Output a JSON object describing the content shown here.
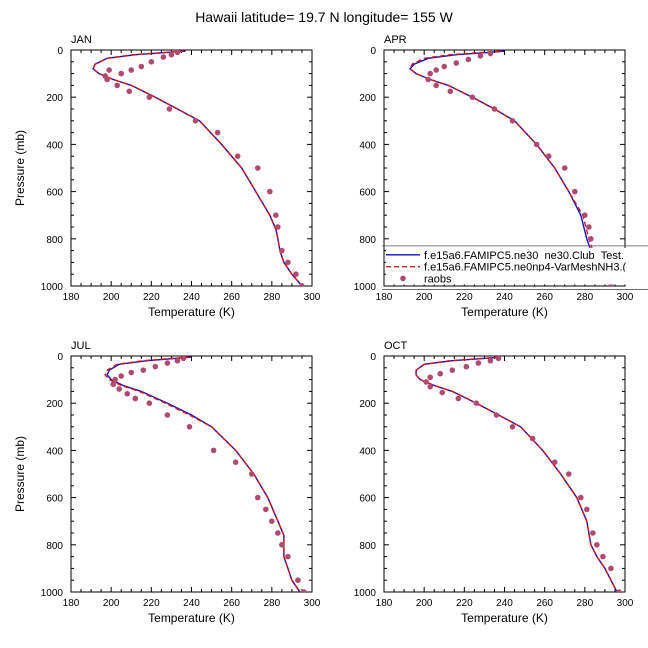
{
  "figure": {
    "title": "Hawaii  latitude= 19.7 N longitude= 155 W"
  },
  "colors": {
    "model1": "#1010c8",
    "model2": "#e01010",
    "obs": "#b04a6e"
  },
  "legend": {
    "panel": "APR",
    "placement": "lower-right",
    "entries": [
      {
        "label": "f.e15a6.FAMIPC5.ne30_ne30.Club_Test.",
        "style": "solid",
        "color_key": "model1"
      },
      {
        "label": "f.e15a6.FAMIPC5.ne0np4-VarMeshNH3.(",
        "style": "dashed",
        "color_key": "model2"
      },
      {
        "label": "raobs",
        "style": "marker",
        "color_key": "obs"
      }
    ]
  },
  "chart_data": [
    {
      "type": "line",
      "panel_label": "JAN",
      "xlabel": "Temperature (K)",
      "ylabel": "Pressure (mb)",
      "xlim": [
        180,
        300
      ],
      "ylim": [
        1000,
        0
      ],
      "xticks": [
        180,
        200,
        220,
        240,
        260,
        280,
        300
      ],
      "yticks": [
        0,
        200,
        400,
        600,
        800,
        1000
      ],
      "series": [
        {
          "name": "f.e15a6.FAMIPC5.ne30_ne30.Club_Test.",
          "style": "solid",
          "color_key": "model1",
          "x": [
            237,
            228,
            212,
            198,
            192,
            191,
            194,
            201,
            210,
            222,
            233,
            244,
            255,
            265,
            272,
            279,
            282,
            283,
            284,
            286,
            290,
            295
          ],
          "y": [
            5,
            10,
            20,
            35,
            60,
            80,
            100,
            125,
            150,
            200,
            250,
            300,
            400,
            500,
            600,
            700,
            760,
            800,
            850,
            900,
            950,
            1000
          ]
        },
        {
          "name": "f.e15a6.FAMIPC5.ne0np4-VarMeshNH3.(",
          "style": "dashed",
          "color_key": "model2",
          "x": [
            236,
            227,
            211,
            198,
            192,
            191,
            194,
            201,
            210,
            222,
            233,
            244,
            255,
            265,
            272,
            279,
            282,
            283,
            284,
            286,
            290,
            295
          ],
          "y": [
            5,
            10,
            20,
            35,
            60,
            80,
            100,
            125,
            150,
            200,
            250,
            300,
            400,
            500,
            600,
            700,
            760,
            800,
            850,
            900,
            950,
            1000
          ]
        },
        {
          "name": "raobs",
          "style": "marker",
          "color_key": "obs",
          "x": [
            233,
            230,
            226,
            220,
            215,
            210,
            205,
            199,
            197,
            198,
            203,
            209,
            219,
            229,
            242,
            253,
            263,
            273,
            279,
            282,
            283,
            285,
            288,
            292,
            295
          ],
          "y": [
            10,
            20,
            30,
            50,
            70,
            85,
            100,
            85,
            110,
            125,
            150,
            175,
            200,
            250,
            300,
            350,
            450,
            500,
            600,
            700,
            750,
            850,
            900,
            950,
            1000
          ]
        }
      ]
    },
    {
      "type": "line",
      "panel_label": "APR",
      "xlabel": "Temperature (K)",
      "ylabel": "",
      "xlim": [
        180,
        300
      ],
      "ylim": [
        1000,
        0
      ],
      "xticks": [
        180,
        200,
        220,
        240,
        260,
        280,
        300
      ],
      "yticks": [
        0,
        200,
        400,
        600,
        800,
        1000
      ],
      "series": [
        {
          "name": "f.e15a6.FAMIPC5.ne30_ne30.Club_Test.",
          "style": "solid",
          "color_key": "model1",
          "x": [
            240,
            232,
            216,
            202,
            195,
            193,
            196,
            203,
            212,
            224,
            235,
            245,
            256,
            265,
            272,
            278,
            281,
            283,
            285,
            289,
            294
          ],
          "y": [
            5,
            10,
            20,
            35,
            60,
            80,
            100,
            125,
            150,
            200,
            250,
            300,
            400,
            500,
            600,
            700,
            800,
            850,
            900,
            950,
            1000
          ]
        },
        {
          "name": "f.e15a6.FAMIPC5.ne0np4-VarMeshNH3.(",
          "style": "dashed",
          "color_key": "model2",
          "x": [
            238,
            229,
            213,
            200,
            194,
            193,
            196,
            203,
            212,
            224,
            235,
            245,
            256,
            265,
            272,
            279,
            282,
            284,
            286,
            289,
            294
          ],
          "y": [
            5,
            10,
            20,
            35,
            60,
            80,
            100,
            125,
            150,
            200,
            250,
            300,
            400,
            500,
            600,
            700,
            800,
            850,
            900,
            950,
            1000
          ]
        },
        {
          "name": "raobs",
          "style": "marker",
          "color_key": "obs",
          "x": [
            233,
            228,
            222,
            216,
            210,
            206,
            203,
            202,
            206,
            213,
            224,
            235,
            244,
            256,
            262,
            270,
            275,
            280,
            282,
            283,
            285,
            288,
            293
          ],
          "y": [
            15,
            25,
            40,
            55,
            70,
            85,
            100,
            125,
            150,
            175,
            200,
            250,
            300,
            400,
            450,
            500,
            600,
            700,
            750,
            800,
            850,
            900,
            1000
          ]
        }
      ]
    },
    {
      "type": "line",
      "panel_label": "JUL",
      "xlabel": "Temperature (K)",
      "ylabel": "Pressure (mb)",
      "xlim": [
        180,
        300
      ],
      "ylim": [
        1000,
        0
      ],
      "xticks": [
        180,
        200,
        220,
        240,
        260,
        280,
        300
      ],
      "yticks": [
        0,
        200,
        400,
        600,
        800,
        1000
      ],
      "series": [
        {
          "name": "f.e15a6.FAMIPC5.ne30_ne30.Club_Test.",
          "style": "solid",
          "color_key": "model1",
          "x": [
            240,
            232,
            218,
            204,
            199,
            198,
            200,
            206,
            215,
            228,
            240,
            250,
            262,
            271,
            278,
            283,
            286,
            286,
            286,
            290,
            294
          ],
          "y": [
            5,
            10,
            20,
            35,
            60,
            80,
            100,
            125,
            150,
            200,
            250,
            300,
            400,
            500,
            600,
            700,
            760,
            800,
            850,
            950,
            1000
          ]
        },
        {
          "name": "f.e15a6.FAMIPC5.ne0np4-VarMeshNH3.(",
          "style": "dashed",
          "color_key": "model2",
          "x": [
            239,
            230,
            216,
            203,
            198,
            197,
            199,
            205,
            214,
            227,
            239,
            250,
            262,
            271,
            278,
            283,
            286,
            286,
            286,
            290,
            294
          ],
          "y": [
            5,
            10,
            20,
            35,
            60,
            80,
            100,
            125,
            150,
            200,
            250,
            300,
            400,
            500,
            600,
            700,
            760,
            800,
            850,
            950,
            1000
          ]
        },
        {
          "name": "raobs",
          "style": "marker",
          "color_key": "obs",
          "x": [
            236,
            233,
            228,
            222,
            216,
            210,
            205,
            202,
            201,
            204,
            208,
            212,
            219,
            228,
            239,
            251,
            262,
            270,
            273,
            277,
            280,
            283,
            285,
            288,
            293,
            296
          ],
          "y": [
            10,
            20,
            30,
            45,
            60,
            70,
            85,
            100,
            120,
            140,
            160,
            180,
            200,
            250,
            300,
            400,
            450,
            500,
            600,
            650,
            700,
            750,
            800,
            850,
            950,
            1000
          ]
        }
      ]
    },
    {
      "type": "line",
      "panel_label": "OCT",
      "xlabel": "Temperature (K)",
      "ylabel": "",
      "xlim": [
        180,
        300
      ],
      "ylim": [
        1000,
        0
      ],
      "xticks": [
        180,
        200,
        220,
        240,
        260,
        280,
        300
      ],
      "yticks": [
        0,
        200,
        400,
        600,
        800,
        1000
      ],
      "series": [
        {
          "name": "f.e15a6.FAMIPC5.ne30_ne30.Club_Test.",
          "style": "solid",
          "color_key": "model1",
          "x": [
            238,
            230,
            214,
            200,
            196,
            196,
            198,
            205,
            214,
            226,
            237,
            248,
            259,
            268,
            276,
            281,
            283,
            286,
            290,
            296
          ],
          "y": [
            5,
            10,
            20,
            35,
            60,
            80,
            100,
            125,
            150,
            200,
            250,
            300,
            400,
            500,
            600,
            700,
            800,
            850,
            900,
            1000
          ]
        },
        {
          "name": "f.e15a6.FAMIPC5.ne0np4-VarMeshNH3.(",
          "style": "dashed",
          "color_key": "model2",
          "x": [
            237,
            229,
            213,
            200,
            196,
            196,
            198,
            205,
            214,
            226,
            237,
            248,
            259,
            268,
            276,
            281,
            283,
            286,
            290,
            296
          ],
          "y": [
            5,
            10,
            20,
            35,
            60,
            80,
            100,
            125,
            150,
            200,
            250,
            300,
            400,
            500,
            600,
            700,
            800,
            850,
            900,
            1000
          ]
        },
        {
          "name": "raobs",
          "style": "marker",
          "color_key": "obs",
          "x": [
            237,
            233,
            227,
            221,
            214,
            208,
            203,
            201,
            203,
            209,
            217,
            226,
            236,
            244,
            254,
            265,
            272,
            278,
            281,
            284,
            286,
            289,
            293,
            297
          ],
          "y": [
            10,
            20,
            30,
            45,
            60,
            75,
            90,
            110,
            130,
            155,
            180,
            200,
            250,
            300,
            350,
            450,
            500,
            600,
            650,
            750,
            800,
            850,
            900,
            1000
          ]
        }
      ]
    }
  ]
}
